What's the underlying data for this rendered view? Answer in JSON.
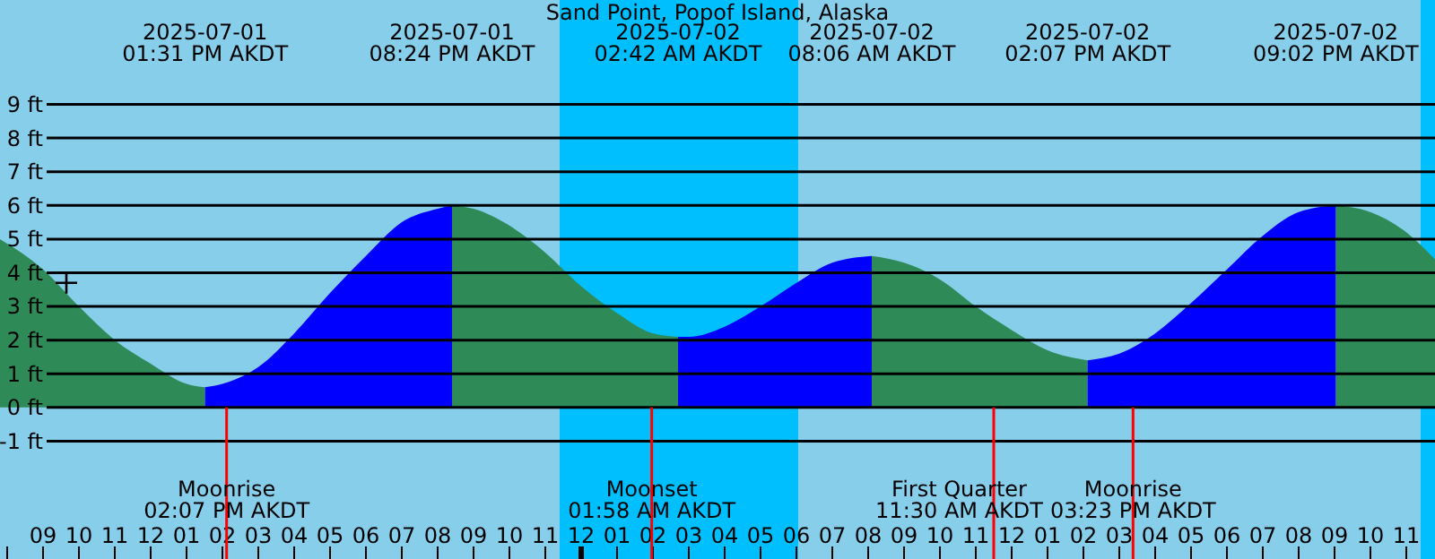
{
  "chart_data": {
    "type": "area",
    "title": "Sand Point, Popof Island, Alaska",
    "xlim": [
      "2025-07-01T07:48",
      "2025-07-02T23:48"
    ],
    "ylim": [
      -4.5,
      12.1
    ],
    "yticks": [
      {
        "value": -1,
        "label": "-1 ft"
      },
      {
        "value": 0,
        "label": "0 ft"
      },
      {
        "value": 1,
        "label": "1 ft"
      },
      {
        "value": 2,
        "label": "2 ft"
      },
      {
        "value": 3,
        "label": "3 ft"
      },
      {
        "value": 4,
        "label": "4 ft"
      },
      {
        "value": 5,
        "label": "5 ft"
      },
      {
        "value": 6,
        "label": "6 ft"
      },
      {
        "value": 7,
        "label": "7 ft"
      },
      {
        "value": 8,
        "label": "8 ft"
      },
      {
        "value": 9,
        "label": "9 ft"
      }
    ],
    "xticks": [
      {
        "value": "2025-07-01T08:00",
        "label": null
      },
      {
        "value": "2025-07-01T09:00",
        "label": "09"
      },
      {
        "value": "2025-07-01T10:00",
        "label": "10"
      },
      {
        "value": "2025-07-01T11:00",
        "label": "11"
      },
      {
        "value": "2025-07-01T12:00",
        "label": "12"
      },
      {
        "value": "2025-07-01T13:00",
        "label": "01"
      },
      {
        "value": "2025-07-01T14:00",
        "label": "02"
      },
      {
        "value": "2025-07-01T15:00",
        "label": "03"
      },
      {
        "value": "2025-07-01T16:00",
        "label": "04"
      },
      {
        "value": "2025-07-01T17:00",
        "label": "05"
      },
      {
        "value": "2025-07-01T18:00",
        "label": "06"
      },
      {
        "value": "2025-07-01T19:00",
        "label": "07"
      },
      {
        "value": "2025-07-01T20:00",
        "label": "08"
      },
      {
        "value": "2025-07-01T21:00",
        "label": "09"
      },
      {
        "value": "2025-07-01T22:00",
        "label": "10"
      },
      {
        "value": "2025-07-01T23:00",
        "label": "11"
      },
      {
        "value": "2025-07-02T00:00",
        "label": "12"
      },
      {
        "value": "2025-07-02T01:00",
        "label": "01"
      },
      {
        "value": "2025-07-02T02:00",
        "label": "02"
      },
      {
        "value": "2025-07-02T03:00",
        "label": "03"
      },
      {
        "value": "2025-07-02T04:00",
        "label": "04"
      },
      {
        "value": "2025-07-02T05:00",
        "label": "05"
      },
      {
        "value": "2025-07-02T06:00",
        "label": "06"
      },
      {
        "value": "2025-07-02T07:00",
        "label": "07"
      },
      {
        "value": "2025-07-02T08:00",
        "label": "08"
      },
      {
        "value": "2025-07-02T09:00",
        "label": "09"
      },
      {
        "value": "2025-07-02T10:00",
        "label": "10"
      },
      {
        "value": "2025-07-02T11:00",
        "label": "11"
      },
      {
        "value": "2025-07-02T12:00",
        "label": "12"
      },
      {
        "value": "2025-07-02T13:00",
        "label": "01"
      },
      {
        "value": "2025-07-02T14:00",
        "label": "02"
      },
      {
        "value": "2025-07-02T15:00",
        "label": "03"
      },
      {
        "value": "2025-07-02T16:00",
        "label": "04"
      },
      {
        "value": "2025-07-02T17:00",
        "label": "05"
      },
      {
        "value": "2025-07-02T18:00",
        "label": "06"
      },
      {
        "value": "2025-07-02T19:00",
        "label": "07"
      },
      {
        "value": "2025-07-02T20:00",
        "label": "08"
      },
      {
        "value": "2025-07-02T21:00",
        "label": "09"
      },
      {
        "value": "2025-07-02T22:00",
        "label": "10"
      },
      {
        "value": "2025-07-02T23:00",
        "label": "11"
      }
    ],
    "grid": "y",
    "x": [
      "2025-07-01T07:48",
      "2025-07-01T09:00",
      "2025-07-01T10:00",
      "2025-07-01T11:00",
      "2025-07-01T12:00",
      "2025-07-01T13:00",
      "2025-07-01T13:31",
      "2025-07-01T14:00",
      "2025-07-01T15:00",
      "2025-07-01T16:00",
      "2025-07-01T17:00",
      "2025-07-01T18:00",
      "2025-07-01T19:00",
      "2025-07-01T20:00",
      "2025-07-01T20:24",
      "2025-07-01T21:00",
      "2025-07-01T22:00",
      "2025-07-01T23:00",
      "2025-07-02T00:00",
      "2025-07-02T01:00",
      "2025-07-02T02:00",
      "2025-07-02T02:42",
      "2025-07-02T03:00",
      "2025-07-02T04:00",
      "2025-07-02T05:00",
      "2025-07-02T06:00",
      "2025-07-02T07:00",
      "2025-07-02T08:06",
      "2025-07-02T09:00",
      "2025-07-02T10:00",
      "2025-07-02T11:00",
      "2025-07-02T12:00",
      "2025-07-02T13:00",
      "2025-07-02T14:07",
      "2025-07-02T15:00",
      "2025-07-02T16:00",
      "2025-07-02T17:00",
      "2025-07-02T18:00",
      "2025-07-02T19:00",
      "2025-07-02T20:00",
      "2025-07-02T21:02",
      "2025-07-02T22:00",
      "2025-07-02T23:00",
      "2025-07-02T23:48"
    ],
    "series": [
      {
        "color": "#2e8b57",
        "values": [
          5.0,
          4.1,
          3.0,
          2.0,
          1.3,
          0.7,
          0.6,
          null,
          null,
          null,
          null,
          null,
          null,
          null,
          6.0,
          5.9,
          5.4,
          4.6,
          3.6,
          2.8,
          2.2,
          2.1,
          null,
          null,
          null,
          null,
          null,
          4.5,
          4.3,
          3.8,
          3.0,
          2.3,
          1.7,
          1.4,
          null,
          null,
          null,
          null,
          null,
          null,
          6.0,
          5.8,
          5.2,
          4.4
        ]
      },
      {
        "color": "#0000ff",
        "values": [
          null,
          null,
          null,
          null,
          null,
          null,
          0.6,
          0.7,
          1.2,
          2.2,
          3.4,
          4.5,
          5.5,
          5.9,
          6.0,
          null,
          null,
          null,
          null,
          null,
          null,
          2.1,
          2.1,
          2.4,
          3.0,
          3.7,
          4.3,
          4.5,
          null,
          null,
          null,
          null,
          null,
          1.4,
          1.6,
          2.2,
          3.1,
          4.1,
          5.1,
          5.8,
          6.0,
          null,
          null,
          null
        ]
      },
      {
        "type": "scatter",
        "marker": "cross",
        "color": "#000000",
        "x": [
          "2025-07-01T09:39"
        ],
        "values": [
          3.7
        ]
      }
    ],
    "bands": [
      {
        "axis": "x",
        "from": "2025-07-01T23:24",
        "to": "2025-07-02T06:03",
        "color": "#00bfff"
      },
      {
        "axis": "x",
        "from": "2025-07-02T23:24",
        "to": "2025-07-02T23:48",
        "color": "#00bfff"
      }
    ],
    "ref_lines": [
      {
        "axis": "x",
        "value": "2025-07-01T14:07",
        "label": "Moonrise\n02:07 PM AKDT",
        "color": "#ff0000"
      },
      {
        "axis": "x",
        "value": "2025-07-02T01:58",
        "label": "Moonset\n01:58 AM AKDT",
        "color": "#ff0000"
      },
      {
        "axis": "x",
        "value": "2025-07-02T11:30",
        "label": "First Quarter\n11:30 AM AKDT",
        "color": "#ff0000"
      },
      {
        "axis": "x",
        "value": "2025-07-02T15:23",
        "label": "Moonrise\n03:23 PM AKDT",
        "color": "#ff0000"
      }
    ],
    "annotations": [
      "2025-07-01\n01:31 PM AKDT",
      "2025-07-01\n08:24 PM AKDT",
      "2025-07-02\n02:42 AM AKDT",
      "2025-07-02\n08:06 AM AKDT",
      "2025-07-02\n02:07 PM AKDT",
      "2025-07-02\n09:02 PM AKDT"
    ]
  }
}
